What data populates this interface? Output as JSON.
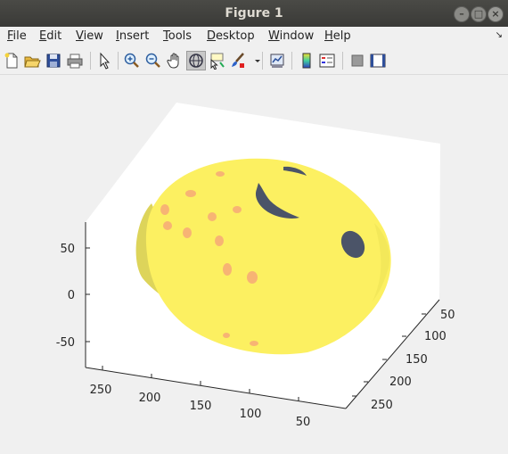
{
  "window": {
    "title": "Figure 1"
  },
  "menu": {
    "items": [
      {
        "label": "File",
        "key": "F",
        "rest": "ile"
      },
      {
        "label": "Edit",
        "key": "E",
        "rest": "dit"
      },
      {
        "label": "View",
        "key": "V",
        "rest": "iew"
      },
      {
        "label": "Insert",
        "key": "I",
        "rest": "nsert"
      },
      {
        "label": "Tools",
        "key": "T",
        "rest": "ools"
      },
      {
        "label": "Desktop",
        "key": "D",
        "rest": "esktop"
      },
      {
        "label": "Window",
        "key": "W",
        "rest": "indow"
      },
      {
        "label": "Help",
        "key": "H",
        "rest": "elp"
      }
    ]
  },
  "toolbar": {
    "buttons": [
      {
        "icon": "new-figure-icon"
      },
      {
        "icon": "open-file-icon"
      },
      {
        "icon": "save-icon"
      },
      {
        "icon": "print-icon"
      },
      {
        "icon": "pointer-icon"
      },
      {
        "icon": "zoom-in-icon"
      },
      {
        "icon": "zoom-out-icon"
      },
      {
        "icon": "pan-hand-icon"
      },
      {
        "icon": "rotate-3d-icon",
        "active": true
      },
      {
        "icon": "data-cursor-icon"
      },
      {
        "icon": "brush-icon"
      },
      {
        "icon": "link-plot-icon"
      },
      {
        "icon": "colorbar-icon"
      },
      {
        "icon": "legend-icon"
      },
      {
        "icon": "hide-plot-tools-icon"
      },
      {
        "icon": "show-plot-tools-icon"
      }
    ]
  },
  "chart_data": {
    "type": "3d-surface",
    "title": "",
    "xlabel": "",
    "ylabel": "",
    "zlabel": "",
    "z_ticks": [
      "50",
      "0",
      "-50"
    ],
    "x_ticks": [
      "250",
      "200",
      "150",
      "100",
      "50"
    ],
    "y_ticks": [
      "50",
      "100",
      "150",
      "200",
      "250"
    ],
    "colors": {
      "face": "#fcf061",
      "shadow": "#ddd45a",
      "eye": "#4b5468",
      "spot": "#f7b474",
      "axes_bg": "#ffffff"
    }
  }
}
